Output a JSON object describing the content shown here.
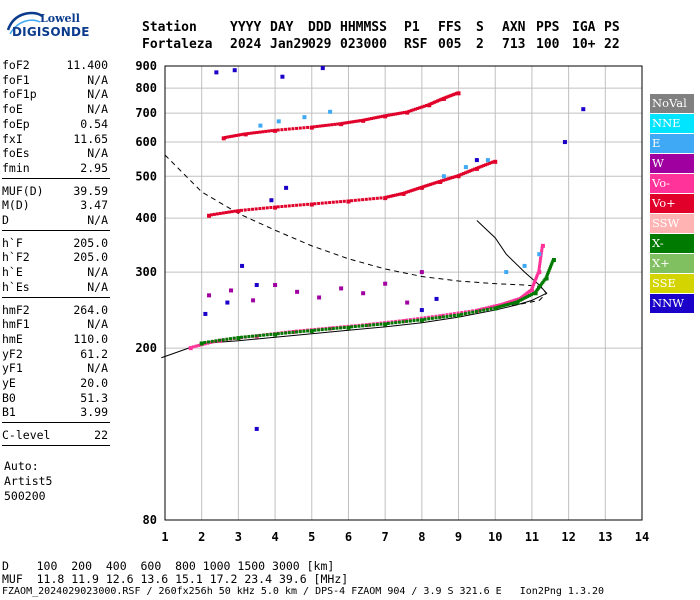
{
  "logo": {
    "line1": "Lowell",
    "line2": "DIGISONDE"
  },
  "header": {
    "labels": [
      "Station",
      "YYYY",
      "DAY",
      "DDD",
      "HHMMSS",
      "P1",
      "FFS",
      "S",
      "AXN",
      "PPS",
      "IGA",
      "PS"
    ],
    "values": [
      "Fortaleza",
      "2024",
      "Jan29",
      "029",
      "023000",
      "RSF",
      "005",
      "2",
      "713",
      "100",
      "10+",
      "22"
    ]
  },
  "params": {
    "group1": [
      {
        "label": "foF2",
        "value": "11.400"
      },
      {
        "label": "foF1",
        "value": "N/A"
      },
      {
        "label": "foF1p",
        "value": "N/A"
      },
      {
        "label": "foE",
        "value": "N/A"
      },
      {
        "label": "foEp",
        "value": "0.54"
      },
      {
        "label": "fxI",
        "value": "11.65"
      },
      {
        "label": "foEs",
        "value": "N/A"
      },
      {
        "label": "fmin",
        "value": "2.95"
      }
    ],
    "group2": [
      {
        "label": "MUF(D)",
        "value": "39.59"
      },
      {
        "label": "M(D)",
        "value": "3.47"
      },
      {
        "label": "D",
        "value": "N/A"
      }
    ],
    "group3": [
      {
        "label": "h`F",
        "value": "205.0"
      },
      {
        "label": "h`F2",
        "value": "205.0"
      },
      {
        "label": "h`E",
        "value": "N/A"
      },
      {
        "label": "h`Es",
        "value": "N/A"
      }
    ],
    "group4": [
      {
        "label": "hmF2",
        "value": "264.0"
      },
      {
        "label": "hmF1",
        "value": "N/A"
      },
      {
        "label": "hmE",
        "value": "110.0"
      },
      {
        "label": "yF2",
        "value": "61.2"
      },
      {
        "label": "yF1",
        "value": "N/A"
      },
      {
        "label": "yE",
        "value": "20.0"
      },
      {
        "label": "B0",
        "value": "51.3"
      },
      {
        "label": "B1",
        "value": "3.99"
      }
    ],
    "group5": [
      {
        "label": "C-level",
        "value": "22"
      }
    ],
    "auto": [
      "Auto:",
      "Artist5",
      "500200"
    ]
  },
  "legend": [
    {
      "name": "NoVal",
      "color": "#808080"
    },
    {
      "name": "NNE",
      "color": "#00e5ff"
    },
    {
      "name": "E",
      "color": "#3fa9f5"
    },
    {
      "name": "W",
      "color": "#a000a0"
    },
    {
      "name": "Vo-",
      "color": "#ff3399"
    },
    {
      "name": "Vo+",
      "color": "#e0002a"
    },
    {
      "name": "SSW",
      "color": "#ffb3b3"
    },
    {
      "name": "X-",
      "color": "#007a00"
    },
    {
      "name": "X+",
      "color": "#80c060"
    },
    {
      "name": "SSE",
      "color": "#d4d400"
    },
    {
      "name": "NNW",
      "color": "#1a00c8"
    }
  ],
  "footer": {
    "line1": "D    100  200  400  600  800 1000 1500 3000 [km]",
    "line2": "MUF  11.8 11.9 12.6 13.6 15.1 17.2 23.4 39.6 [MHz]",
    "line3": "FZAOM_2024029023000.RSF / 260fx256h 50 kHz 5.0 km / DPS-4 FZAOM 904 / 3.9 S 321.6 E   Ion2Png 1.3.20"
  },
  "chart_data": {
    "type": "scatter",
    "xlim": [
      1,
      14
    ],
    "ylim": [
      80,
      900
    ],
    "x_ticks": [
      1,
      2,
      3,
      4,
      5,
      6,
      7,
      8,
      9,
      10,
      11,
      12,
      13,
      14
    ],
    "y_ticks": [
      80,
      200,
      300,
      400,
      500,
      600,
      700,
      800,
      900
    ],
    "grid": true,
    "y_scale": "log",
    "trace_profile": {
      "x": [
        0.9,
        2,
        3,
        4,
        5,
        6,
        7,
        8,
        9,
        10,
        10.6,
        11,
        11.2,
        11.4,
        11.2,
        10.8,
        10.3,
        10,
        9.5
      ],
      "y": [
        190,
        205,
        208,
        212,
        216,
        220,
        224,
        229,
        236,
        245,
        252,
        258,
        263,
        268,
        280,
        300,
        330,
        360,
        395
      ]
    },
    "dashed_profile": {
      "x": [
        1,
        2,
        3,
        4,
        5,
        6,
        7,
        8,
        9,
        10,
        10.8,
        11.2,
        11.4,
        11.2,
        10.6,
        10
      ],
      "y": [
        560,
        460,
        410,
        375,
        345,
        322,
        305,
        293,
        286,
        282,
        280,
        278,
        268,
        258,
        252,
        250
      ]
    },
    "traces": [
      {
        "name": "o-trace 1F",
        "x": [
          1.7,
          2.5,
          3.5,
          4.5,
          5.5,
          6.5,
          7.5,
          8.5,
          9.5,
          10.2,
          10.7,
          11.0,
          11.2,
          11.3
        ],
        "y": [
          200,
          208,
          213,
          218,
          222,
          226,
          231,
          237,
          244,
          252,
          260,
          272,
          300,
          345
        ],
        "color": "#ff3399"
      },
      {
        "name": "x-trace 1F",
        "x": [
          2.0,
          3,
          4,
          5,
          6,
          7,
          8,
          9,
          10,
          10.6,
          11.1,
          11.4,
          11.6
        ],
        "y": [
          205,
          211,
          215,
          219,
          223,
          227,
          232,
          238,
          247,
          255,
          268,
          290,
          320
        ],
        "color": "#007a00"
      },
      {
        "name": "o-trace 2F",
        "x": [
          2.2,
          3,
          4,
          5,
          6,
          7,
          7.5,
          8,
          8.5,
          9,
          9.5,
          10
        ],
        "y": [
          405,
          415,
          423,
          430,
          437,
          445,
          455,
          470,
          485,
          500,
          520,
          540
        ],
        "color": "#e0002a"
      },
      {
        "name": "o-trace 3F",
        "x": [
          2.6,
          3.2,
          4,
          5,
          5.8,
          6.4,
          7,
          7.6,
          8.2,
          8.6,
          9.0
        ],
        "y": [
          612,
          625,
          637,
          648,
          660,
          672,
          688,
          702,
          730,
          755,
          778
        ],
        "color": "#e0002a"
      },
      {
        "name": "NNE/E spread",
        "x": [
          3.6,
          4.1,
          4.8,
          5.5,
          8.6,
          9.2,
          9.8,
          10.3,
          10.8,
          11.2
        ],
        "y": [
          655,
          670,
          685,
          705,
          500,
          525,
          545,
          300,
          310,
          330
        ],
        "color": "#3fa9f5"
      },
      {
        "name": "W spread",
        "x": [
          2.2,
          2.8,
          3.4,
          4.0,
          4.6,
          5.2,
          5.8,
          6.4,
          7.0,
          7.6,
          8.0
        ],
        "y": [
          265,
          272,
          258,
          280,
          270,
          262,
          275,
          268,
          282,
          255,
          300
        ],
        "color": "#a000a0"
      },
      {
        "name": "NNW spread",
        "x": [
          2.1,
          2.7,
          3.1,
          3.5,
          3.9,
          4.3,
          8.0,
          8.4
        ],
        "y": [
          240,
          255,
          310,
          280,
          440,
          470,
          245,
          260
        ],
        "color": "#1a00c8"
      },
      {
        "name": "outliers",
        "x": [
          2.4,
          2.9,
          4.2,
          5.3,
          9.5,
          11.9,
          12.4,
          3.5
        ],
        "y": [
          870,
          880,
          850,
          890,
          545,
          600,
          715,
          130
        ],
        "color": "#1a00c8"
      }
    ]
  }
}
